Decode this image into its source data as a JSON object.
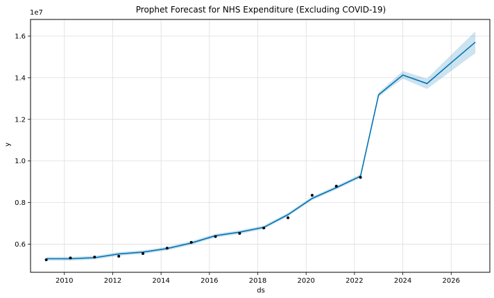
{
  "chart_data": {
    "type": "line",
    "title": "Prophet Forecast for NHS Expenditure (Excluding COVID-19)",
    "xlabel": "ds",
    "ylabel": "y",
    "y_offset_label": "1e7",
    "xlim": [
      2008.6,
      2027.6
    ],
    "ylim": [
      4650000,
      16800000
    ],
    "x_ticks": [
      2010,
      2012,
      2014,
      2016,
      2018,
      2020,
      2022,
      2024,
      2026
    ],
    "x_tick_labels": [
      "2010",
      "2012",
      "2014",
      "2016",
      "2018",
      "2020",
      "2022",
      "2024",
      "2026"
    ],
    "y_ticks": [
      6000000,
      8000000,
      10000000,
      12000000,
      14000000,
      16000000
    ],
    "y_tick_labels": [
      "0.6",
      "0.8",
      "1.0",
      "1.2",
      "1.4",
      "1.6"
    ],
    "grid": true,
    "series": [
      {
        "kind": "observed",
        "color": "#000000",
        "x": [
          2009.25,
          2010.25,
          2011.25,
          2012.25,
          2013.25,
          2014.25,
          2015.25,
          2016.25,
          2017.25,
          2018.25,
          2019.25,
          2020.25,
          2021.25,
          2022.25
        ],
        "values": [
          5250000,
          5340000,
          5380000,
          5420000,
          5550000,
          5810000,
          6090000,
          6370000,
          6520000,
          6780000,
          7270000,
          8350000,
          8790000,
          9210000
        ]
      },
      {
        "kind": "forecast",
        "color": "#0072B2",
        "x": [
          2009.25,
          2010.25,
          2011.25,
          2012.25,
          2013.25,
          2014.25,
          2015.25,
          2016.25,
          2017.25,
          2018.25,
          2019.25,
          2020.25,
          2021.25,
          2022.25,
          2023.0,
          2024.0,
          2025.0,
          2026.0,
          2027.0
        ],
        "values": [
          5300000,
          5300000,
          5350000,
          5530000,
          5620000,
          5790000,
          6060000,
          6410000,
          6580000,
          6810000,
          7420000,
          8200000,
          8720000,
          9270000,
          13180000,
          14130000,
          13720000,
          14720000,
          15710000
        ],
        "lower": [
          5210000,
          5210000,
          5260000,
          5440000,
          5530000,
          5700000,
          5970000,
          6320000,
          6490000,
          6720000,
          7340000,
          8110000,
          8630000,
          9180000,
          13080000,
          13950000,
          13460000,
          14320000,
          15180000
        ],
        "upper": [
          5390000,
          5390000,
          5440000,
          5620000,
          5710000,
          5880000,
          6150000,
          6500000,
          6670000,
          6900000,
          7510000,
          8290000,
          8810000,
          9360000,
          13290000,
          14320000,
          13960000,
          15100000,
          16230000
        ]
      }
    ]
  }
}
